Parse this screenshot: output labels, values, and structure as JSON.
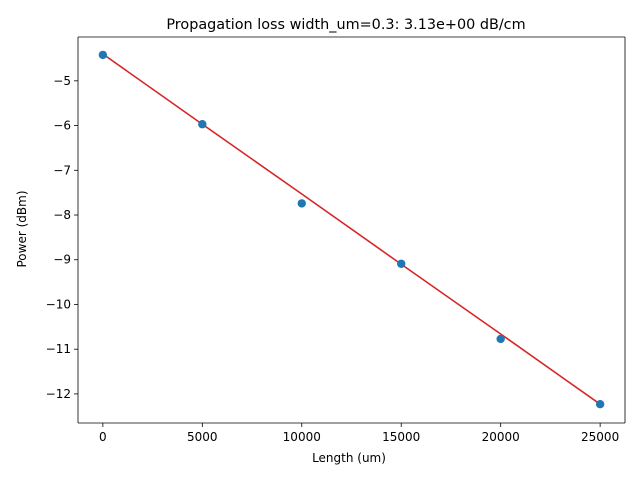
{
  "chart_data": {
    "type": "scatter",
    "title": "Propagation loss width_um=0.3: 3.13e+00 dB/cm",
    "xlabel": "Length (um)",
    "ylabel": "Power (dBm)",
    "xlim": [
      -1250,
      26250
    ],
    "ylim": [
      -12.65,
      -4.02
    ],
    "x_ticks": [
      0,
      5000,
      10000,
      15000,
      20000,
      25000
    ],
    "x_tick_labels": [
      "0",
      "5000",
      "10000",
      "15000",
      "20000",
      "25000"
    ],
    "y_ticks": [
      -5,
      -6,
      -7,
      -8,
      -9,
      -10,
      -11,
      -12
    ],
    "y_tick_labels": [
      "−5",
      "−6",
      "−7",
      "−8",
      "−9",
      "−10",
      "−11",
      "−12"
    ],
    "grid": false,
    "series": [
      {
        "type": "scatter",
        "color": "#1f77b4",
        "x": [
          0,
          5000,
          10000,
          15000,
          20000,
          25000
        ],
        "y": [
          -4.42,
          -5.97,
          -7.74,
          -9.09,
          -10.77,
          -12.23
        ]
      },
      {
        "type": "line",
        "color": "#d62728",
        "x": [
          0,
          5000,
          10000,
          15000,
          20000,
          25000
        ],
        "y": [
          -4.4,
          -5.97,
          -7.53,
          -9.1,
          -10.66,
          -12.23
        ]
      }
    ]
  }
}
